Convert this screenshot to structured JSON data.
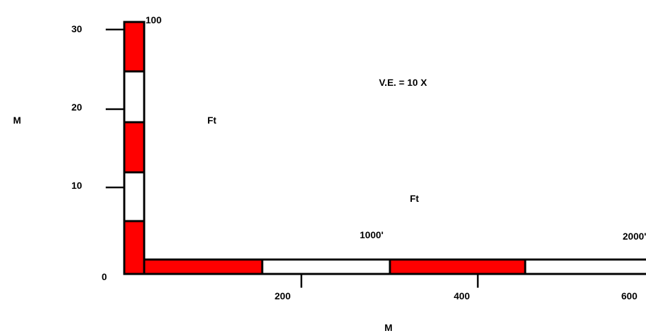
{
  "colors": {
    "fill_primary": "#ff0000",
    "fill_alternate": "#ffffff",
    "stroke": "#000000"
  },
  "vertical_bar": {
    "tick_labels": [
      "30",
      "20",
      "10",
      "0"
    ],
    "top_label": "100",
    "left_unit_label": "M",
    "right_unit_label": "Ft",
    "segment_fills": [
      "red",
      "white",
      "red",
      "white",
      "red"
    ]
  },
  "horizontal_bar": {
    "tick_labels": [
      "200",
      "400",
      "600"
    ],
    "upper_labels": [
      "1000'",
      "2000'"
    ],
    "bottom_unit_label": "M",
    "upper_unit_label": "Ft",
    "segment_fills": [
      "red",
      "white",
      "red",
      "white"
    ]
  },
  "vertical_exaggeration": "V.E. = 10 X"
}
